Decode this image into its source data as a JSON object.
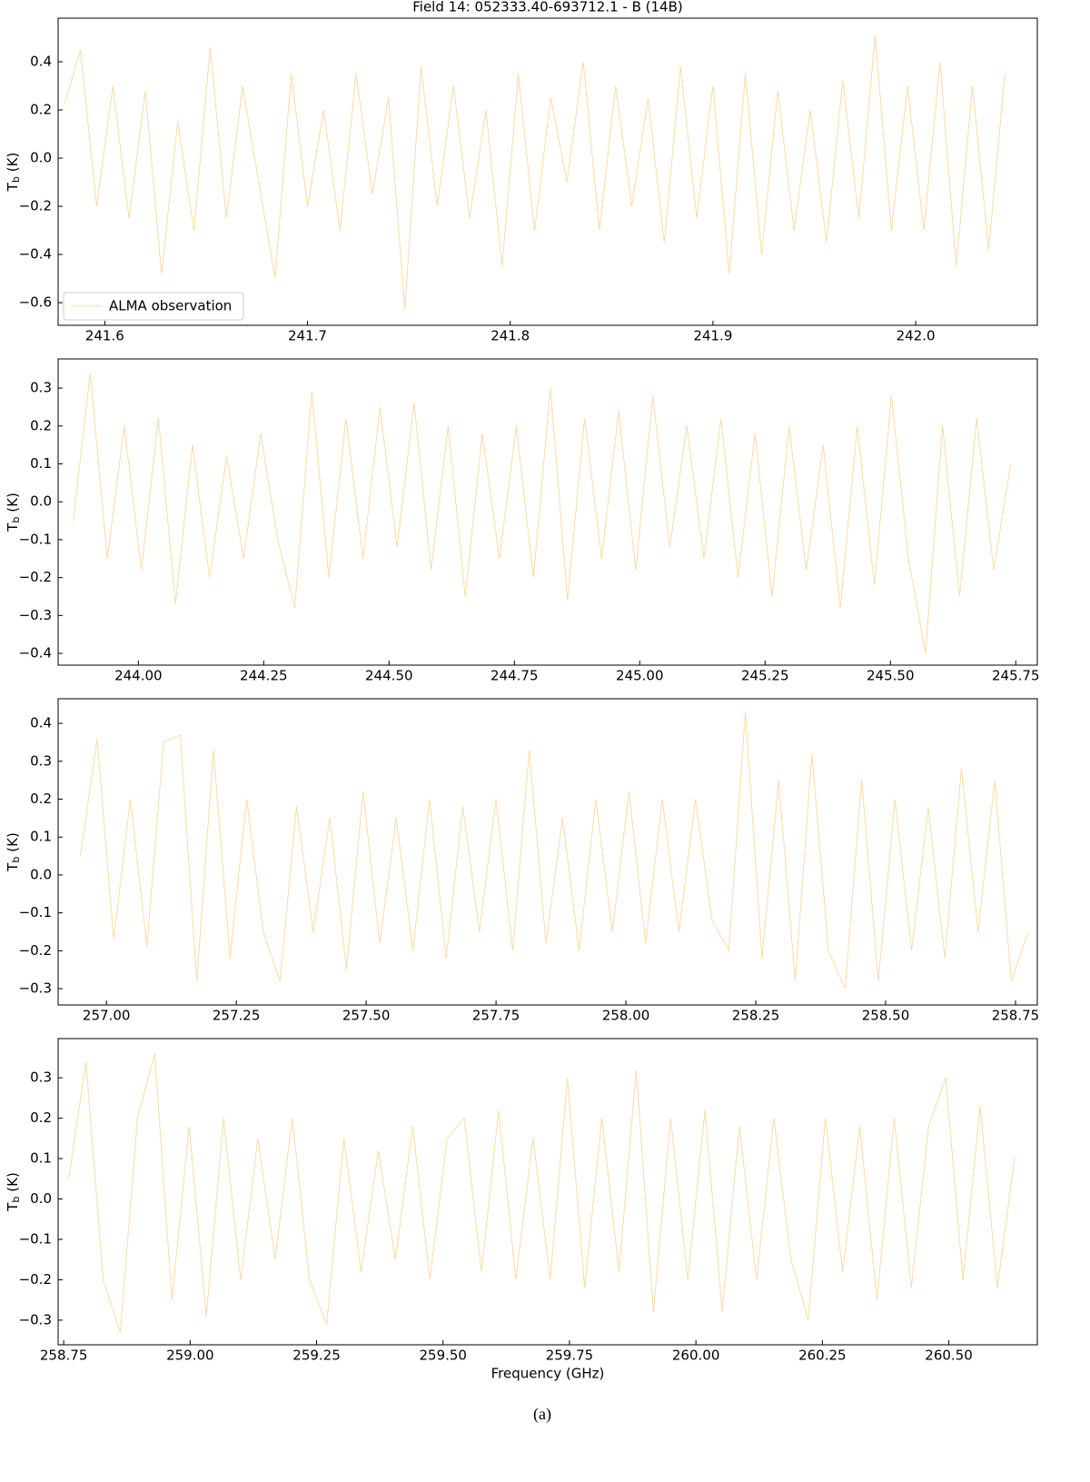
{
  "chart_data": [
    {
      "type": "line",
      "title": "Field 14: 052333.40-693712.1 - B (14B)",
      "ylabel": {
        "symbol": "T",
        "subscript": "b",
        "unit": "(K)"
      },
      "legend": "lower left",
      "grid": false,
      "x": [
        241.58,
        241.588,
        241.596,
        241.604,
        241.612,
        241.62,
        241.628,
        241.636,
        241.644,
        241.652,
        241.66,
        241.668,
        241.676,
        241.684,
        241.692,
        241.7,
        241.708,
        241.716,
        241.724,
        241.732,
        241.74,
        241.748,
        241.756,
        241.764,
        241.772,
        241.78,
        241.788,
        241.796,
        241.804,
        241.812,
        241.82,
        241.828,
        241.836,
        241.844,
        241.852,
        241.86,
        241.868,
        241.876,
        241.884,
        241.892,
        241.9,
        241.908,
        241.916,
        241.924,
        241.932,
        241.94,
        241.948,
        241.956,
        241.964,
        241.972,
        241.98,
        241.988,
        241.996,
        242.004,
        242.012,
        242.02,
        242.028,
        242.036,
        242.044
      ],
      "series": [
        {
          "name": "ALMA observation",
          "color": "#fbd89b",
          "values": [
            0.22,
            0.45,
            -0.2,
            0.3,
            -0.25,
            0.28,
            -0.48,
            0.15,
            -0.3,
            0.46,
            -0.25,
            0.3,
            -0.1,
            -0.5,
            0.35,
            -0.2,
            0.2,
            -0.3,
            0.35,
            -0.15,
            0.25,
            -0.63,
            0.38,
            -0.2,
            0.3,
            -0.25,
            0.2,
            -0.45,
            0.35,
            -0.3,
            0.25,
            -0.1,
            0.4,
            -0.3,
            0.3,
            -0.2,
            0.25,
            -0.35,
            0.38,
            -0.25,
            0.3,
            -0.48,
            0.35,
            -0.4,
            0.28,
            -0.3,
            0.2,
            -0.35,
            0.32,
            -0.25,
            0.51,
            -0.3,
            0.3,
            -0.3,
            0.4,
            -0.45,
            0.3,
            -0.38,
            0.35
          ]
        }
      ],
      "xlim": [
        241.577,
        242.06
      ],
      "xticks": [
        241.6,
        241.7,
        241.8,
        241.9,
        {
          "value": 242,
          "label": "242.0"
        }
      ],
      "ylim": [
        -0.694,
        0.581
      ],
      "yticks": [
        {
          "value": -0.6,
          "label": "−0.6"
        },
        {
          "value": -0.4,
          "label": "−0.4"
        },
        {
          "value": -0.2,
          "label": "−0.2"
        },
        {
          "value": 0,
          "label": "0.0"
        },
        0.2,
        0.4
      ]
    },
    {
      "type": "line",
      "ylabel": {
        "symbol": "T",
        "subscript": "b",
        "unit": "(K)"
      },
      "grid": false,
      "x": [
        243.87,
        243.904,
        243.938,
        243.972,
        244.006,
        244.04,
        244.074,
        244.108,
        244.142,
        244.176,
        244.21,
        244.244,
        244.278,
        244.312,
        244.346,
        244.38,
        244.414,
        244.448,
        244.482,
        244.516,
        244.55,
        244.584,
        244.618,
        244.652,
        244.686,
        244.72,
        244.754,
        244.788,
        244.822,
        244.856,
        244.89,
        244.924,
        244.958,
        244.992,
        245.026,
        245.06,
        245.094,
        245.128,
        245.162,
        245.196,
        245.23,
        245.264,
        245.298,
        245.332,
        245.366,
        245.4,
        245.434,
        245.468,
        245.502,
        245.536,
        245.57,
        245.604,
        245.638,
        245.672,
        245.706,
        245.74
      ],
      "series": [
        {
          "color": "#fbd89b",
          "values": [
            -0.05,
            0.34,
            -0.15,
            0.2,
            -0.18,
            0.22,
            -0.27,
            0.15,
            -0.2,
            0.12,
            -0.15,
            0.18,
            -0.1,
            -0.28,
            0.29,
            -0.2,
            0.22,
            -0.15,
            0.25,
            -0.12,
            0.26,
            -0.18,
            0.2,
            -0.25,
            0.18,
            -0.15,
            0.2,
            -0.2,
            0.3,
            -0.26,
            0.22,
            -0.15,
            0.24,
            -0.18,
            0.28,
            -0.12,
            0.2,
            -0.15,
            0.22,
            -0.2,
            0.18,
            -0.25,
            0.2,
            -0.18,
            0.15,
            -0.28,
            0.2,
            -0.22,
            0.28,
            -0.15,
            -0.4,
            0.2,
            -0.25,
            0.22,
            -0.18,
            0.1
          ]
        }
      ],
      "xlim": [
        243.84,
        245.793
      ],
      "xticks": [
        {
          "value": 244,
          "label": "244.00"
        },
        {
          "value": 244.25,
          "label": "244.25"
        },
        {
          "value": 244.5,
          "label": "244.50"
        },
        {
          "value": 244.75,
          "label": "244.75"
        },
        {
          "value": 245,
          "label": "245.00"
        },
        {
          "value": 245.25,
          "label": "245.25"
        },
        {
          "value": 245.5,
          "label": "245.50"
        },
        {
          "value": 245.75,
          "label": "245.75"
        }
      ],
      "ylim": [
        -0.431,
        0.377
      ],
      "yticks": [
        {
          "value": -0.4,
          "label": "−0.4"
        },
        {
          "value": -0.3,
          "label": "−0.3"
        },
        {
          "value": -0.2,
          "label": "−0.2"
        },
        {
          "value": -0.1,
          "label": "−0.1"
        },
        {
          "value": 0,
          "label": "0.0"
        },
        0.1,
        0.2,
        0.3
      ]
    },
    {
      "type": "line",
      "ylabel": {
        "symbol": "T",
        "subscript": "b",
        "unit": "(K)"
      },
      "grid": false,
      "x": [
        256.95,
        256.982,
        257.014,
        257.046,
        257.078,
        257.11,
        257.142,
        257.174,
        257.206,
        257.238,
        257.27,
        257.302,
        257.334,
        257.366,
        257.398,
        257.43,
        257.462,
        257.494,
        257.526,
        257.558,
        257.59,
        257.622,
        257.654,
        257.686,
        257.718,
        257.75,
        257.782,
        257.814,
        257.846,
        257.878,
        257.91,
        257.942,
        257.974,
        258.006,
        258.038,
        258.07,
        258.102,
        258.134,
        258.166,
        258.198,
        258.23,
        258.262,
        258.294,
        258.326,
        258.358,
        258.39,
        258.422,
        258.454,
        258.486,
        258.518,
        258.55,
        258.582,
        258.614,
        258.646,
        258.678,
        258.71,
        258.742,
        258.774
      ],
      "series": [
        {
          "color": "#fbd89b",
          "values": [
            0.05,
            0.36,
            -0.17,
            0.2,
            -0.19,
            0.35,
            0.37,
            -0.28,
            0.33,
            -0.22,
            0.2,
            -0.15,
            -0.28,
            0.18,
            -0.15,
            0.15,
            -0.25,
            0.22,
            -0.18,
            0.15,
            -0.2,
            0.2,
            -0.22,
            0.18,
            -0.15,
            0.2,
            -0.2,
            0.33,
            -0.18,
            0.15,
            -0.2,
            0.2,
            -0.15,
            0.22,
            -0.18,
            0.2,
            -0.15,
            0.2,
            -0.12,
            -0.2,
            0.43,
            -0.22,
            0.25,
            -0.28,
            0.32,
            -0.2,
            -0.3,
            0.25,
            -0.28,
            0.2,
            -0.2,
            0.18,
            -0.22,
            0.28,
            -0.15,
            0.25,
            -0.28,
            -0.15
          ]
        }
      ],
      "xlim": [
        256.907,
        258.792
      ],
      "xticks": [
        {
          "value": 257,
          "label": "257.00"
        },
        {
          "value": 257.25,
          "label": "257.25"
        },
        {
          "value": 257.5,
          "label": "257.50"
        },
        {
          "value": 257.75,
          "label": "257.75"
        },
        {
          "value": 258,
          "label": "258.00"
        },
        {
          "value": 258.25,
          "label": "258.25"
        },
        {
          "value": 258.5,
          "label": "258.50"
        },
        {
          "value": 258.75,
          "label": "258.75"
        }
      ],
      "ylim": [
        -0.343,
        0.465
      ],
      "yticks": [
        {
          "value": -0.3,
          "label": "−0.3"
        },
        {
          "value": -0.2,
          "label": "−0.2"
        },
        {
          "value": -0.1,
          "label": "−0.1"
        },
        {
          "value": 0,
          "label": "0.0"
        },
        0.1,
        0.2,
        0.3,
        0.4
      ]
    },
    {
      "type": "line",
      "xlabel": "Frequency (GHz)",
      "caption": "(a)",
      "ylabel": {
        "symbol": "T",
        "subscript": "b",
        "unit": "(K)"
      },
      "grid": false,
      "x": [
        258.76,
        258.794,
        258.828,
        258.862,
        258.896,
        258.93,
        258.964,
        258.998,
        259.032,
        259.066,
        259.1,
        259.134,
        259.168,
        259.202,
        259.236,
        259.27,
        259.304,
        259.338,
        259.372,
        259.406,
        259.44,
        259.474,
        259.508,
        259.542,
        259.576,
        259.61,
        259.644,
        259.678,
        259.712,
        259.746,
        259.78,
        259.814,
        259.848,
        259.882,
        259.916,
        259.95,
        259.984,
        260.018,
        260.052,
        260.086,
        260.12,
        260.154,
        260.188,
        260.222,
        260.256,
        260.29,
        260.324,
        260.358,
        260.392,
        260.426,
        260.46,
        260.494,
        260.528,
        260.562,
        260.596,
        260.63
      ],
      "series": [
        {
          "color": "#fbd89b",
          "values": [
            0.05,
            0.34,
            -0.2,
            -0.33,
            0.2,
            0.36,
            -0.25,
            0.18,
            -0.29,
            0.2,
            -0.2,
            0.15,
            -0.15,
            0.2,
            -0.2,
            -0.31,
            0.15,
            -0.18,
            0.12,
            -0.15,
            0.18,
            -0.2,
            0.15,
            0.2,
            -0.18,
            0.22,
            -0.2,
            0.15,
            -0.2,
            0.3,
            -0.22,
            0.2,
            -0.18,
            0.32,
            -0.28,
            0.2,
            -0.2,
            0.22,
            -0.28,
            0.18,
            -0.2,
            0.2,
            -0.15,
            -0.3,
            0.2,
            -0.18,
            0.18,
            -0.25,
            0.2,
            -0.22,
            0.18,
            0.3,
            -0.2,
            0.23,
            -0.22,
            0.1
          ]
        }
      ],
      "xlim": [
        258.739,
        260.675
      ],
      "xticks": [
        {
          "value": 258.75,
          "label": "258.75"
        },
        {
          "value": 259,
          "label": "259.00"
        },
        {
          "value": 259.25,
          "label": "259.25"
        },
        {
          "value": 259.5,
          "label": "259.50"
        },
        {
          "value": 259.75,
          "label": "259.75"
        },
        {
          "value": 260,
          "label": "260.00"
        },
        {
          "value": 260.25,
          "label": "260.25"
        },
        {
          "value": 260.5,
          "label": "260.50"
        }
      ],
      "ylim": [
        -0.361,
        0.397
      ],
      "yticks": [
        {
          "value": -0.3,
          "label": "−0.3"
        },
        {
          "value": -0.2,
          "label": "−0.2"
        },
        {
          "value": -0.1,
          "label": "−0.1"
        },
        {
          "value": 0,
          "label": "0.0"
        },
        0.1,
        0.2,
        0.3
      ]
    }
  ]
}
